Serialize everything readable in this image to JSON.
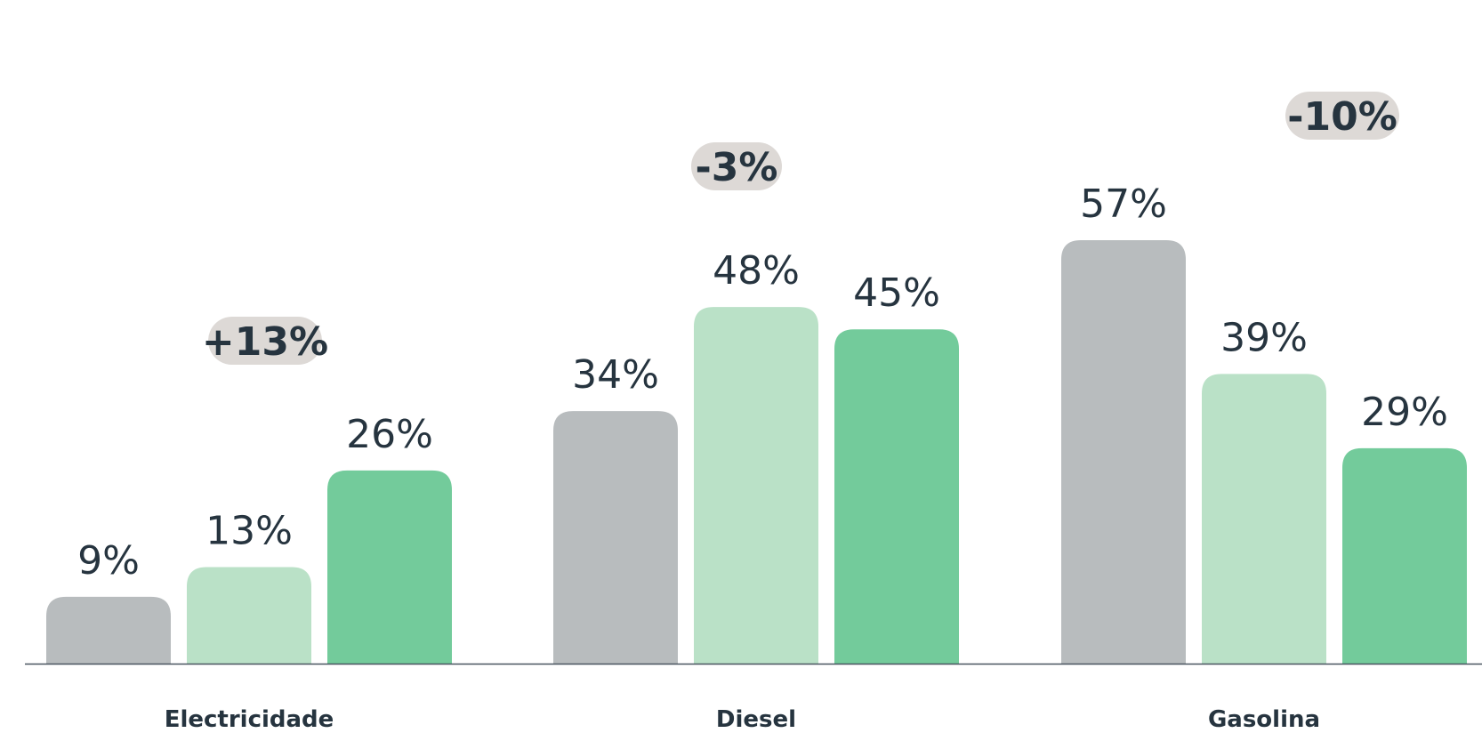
{
  "chart_data": {
    "type": "bar",
    "categories": [
      "Electricidade",
      "Diesel",
      "Gasolina"
    ],
    "series": [
      {
        "values": [
          9,
          34,
          57
        ],
        "color": "#b8bcbe"
      },
      {
        "values": [
          13,
          48,
          39
        ],
        "color": "#bae1c7"
      },
      {
        "values": [
          26,
          45,
          29
        ],
        "color": "#73cb9b"
      }
    ],
    "value_labels": [
      [
        "9%",
        "34%",
        "57%"
      ],
      [
        "13%",
        "48%",
        "39%"
      ],
      [
        "26%",
        "45%",
        "29%"
      ]
    ],
    "deltas": [
      "+13%",
      "-3%",
      "-10%"
    ],
    "delta_values": [
      13,
      -3,
      -10
    ],
    "ylim": [
      0,
      60
    ],
    "title": "",
    "xlabel": "",
    "ylabel": "",
    "grid": false,
    "legend": "none",
    "colors": {
      "text": "#26343f",
      "axis": "#4a5560",
      "badge": "#ddd9d6"
    }
  }
}
